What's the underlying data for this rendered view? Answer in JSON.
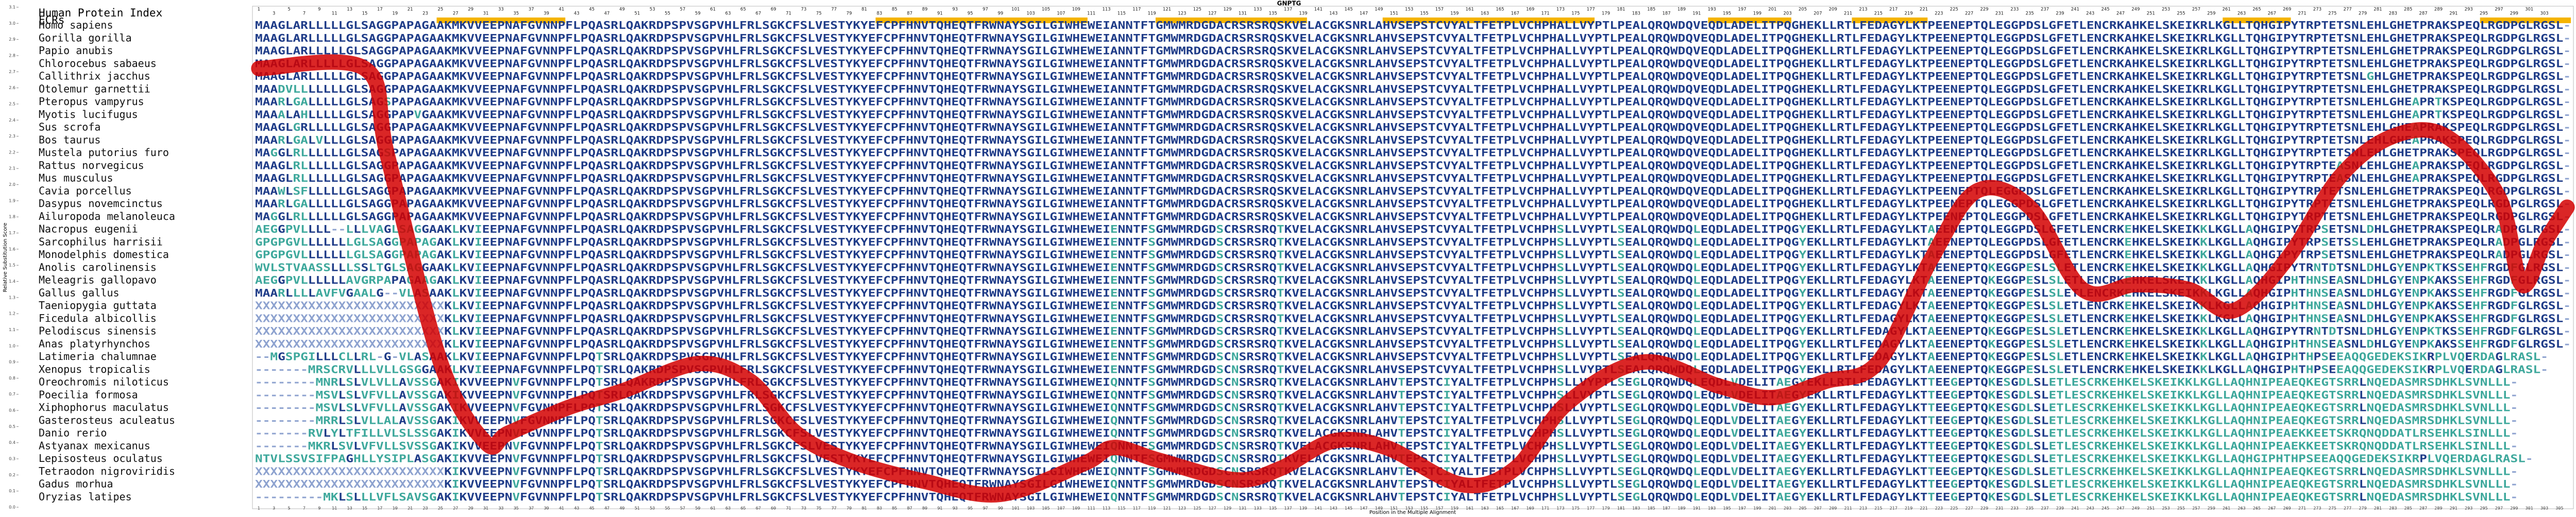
{
  "chart_data": {
    "type": "line",
    "title": "GNPTG",
    "y_label": "Relative Substitution Score",
    "x_label": "Position in the Multiple Alignment",
    "human_index_label": "Human Protein Index",
    "ecr_label": "ECRs",
    "color": "#d40000",
    "xlim": [
      0.5,
      306.5
    ],
    "ylim": [
      0,
      3.1
    ],
    "yticks": [
      {
        "value": 0,
        "label": "0.0"
      },
      0.1,
      0.2,
      0.3,
      0.4,
      0.5,
      0.6,
      0.7,
      0.8,
      0.9,
      {
        "value": 1,
        "label": "1.0"
      },
      1.1,
      1.2,
      1.3,
      1.4,
      1.5,
      1.6,
      1.7,
      1.8,
      1.9,
      {
        "value": 2,
        "label": "2.0"
      },
      2.1,
      2.2,
      2.3,
      2.4,
      2.5,
      2.6,
      2.7,
      2.8,
      2.9,
      {
        "value": 3,
        "label": "3.0"
      },
      3.1
    ],
    "xticks": [
      1,
      3,
      5,
      7,
      9,
      11,
      13,
      15,
      17,
      19,
      21,
      23,
      25,
      27,
      29,
      31,
      33,
      35,
      37,
      39,
      41,
      43,
      45,
      47,
      49,
      51,
      53,
      55,
      57,
      59,
      61,
      63,
      65,
      67,
      69,
      71,
      73,
      75,
      77,
      79,
      81,
      83,
      85,
      87,
      89,
      91,
      93,
      95,
      97,
      99,
      101,
      103,
      105,
      107,
      109,
      111,
      113,
      115,
      117,
      119,
      121,
      123,
      125,
      127,
      129,
      131,
      133,
      135,
      137,
      139,
      141,
      143,
      145,
      147,
      149,
      151,
      153,
      155,
      157,
      159,
      161,
      163,
      165,
      167,
      169,
      171,
      173,
      175,
      177,
      179,
      181,
      183,
      185,
      187,
      189,
      191,
      193,
      195,
      197,
      199,
      201,
      203,
      205,
      207,
      209,
      211,
      213,
      215,
      217,
      219,
      221,
      223,
      225,
      227,
      229,
      231,
      233,
      235,
      237,
      239,
      241,
      243,
      245,
      247,
      249,
      251,
      253,
      255,
      257,
      259,
      261,
      263,
      265,
      267,
      269,
      271,
      273,
      275,
      277,
      279,
      281,
      283,
      285,
      287,
      289,
      291,
      293,
      295,
      297,
      299,
      301,
      303,
      305
    ],
    "human_index": [
      1,
      3,
      5,
      7,
      9,
      11,
      13,
      15,
      17,
      19,
      21,
      23,
      25,
      27,
      29,
      31,
      33,
      35,
      37,
      39,
      41,
      43,
      45,
      47,
      49,
      51,
      53,
      55,
      57,
      59,
      61,
      63,
      65,
      67,
      69,
      71,
      73,
      75,
      77,
      79,
      81,
      83,
      85,
      87,
      89,
      91,
      93,
      95,
      97,
      99,
      101,
      103,
      105,
      107,
      109,
      111,
      113,
      115,
      117,
      119,
      121,
      123,
      125,
      127,
      129,
      131,
      133,
      135,
      137,
      139,
      141,
      143,
      145,
      147,
      149,
      151,
      153,
      155,
      157,
      159,
      161,
      163,
      165,
      167,
      169,
      171,
      173,
      175,
      177,
      179,
      181,
      183,
      185,
      187,
      189,
      191,
      193,
      195,
      197,
      199,
      201,
      203,
      205,
      207,
      209,
      211,
      213,
      215,
      217,
      219,
      221,
      223,
      225,
      227,
      229,
      231,
      233,
      235,
      237,
      239,
      241,
      243,
      245,
      247,
      249,
      251,
      253,
      255,
      257,
      259,
      261,
      263,
      265,
      267,
      269,
      271,
      273,
      275,
      277,
      279,
      281,
      283,
      285,
      287,
      289,
      291,
      293,
      295,
      297,
      299,
      301,
      303
    ],
    "ecrs": [
      [
        25,
        41
      ],
      [
        83,
        110
      ],
      [
        120,
        139
      ],
      [
        150,
        177
      ],
      [
        193,
        203
      ],
      [
        212,
        221
      ],
      [
        261,
        269
      ],
      [
        295,
        306
      ]
    ],
    "x": [
      1,
      15,
      18,
      25,
      31,
      34,
      42,
      49,
      59,
      66,
      72,
      79,
      89,
      99,
      110,
      114,
      120,
      130,
      136,
      143,
      150,
      160,
      167,
      174,
      184,
      194,
      201,
      208,
      215,
      222,
      228,
      235,
      242,
      249,
      256,
      262,
      269,
      276,
      283,
      290,
      297,
      300,
      303,
      306
    ],
    "values": [
      2.72,
      2.72,
      2.18,
      0.9,
      0.4,
      0.46,
      0.62,
      0.72,
      0.89,
      0.78,
      0.46,
      0.29,
      0.16,
      0.08,
      0.27,
      0.37,
      0.29,
      0.17,
      0.24,
      0.41,
      0.37,
      0.14,
      0.24,
      0.65,
      0.9,
      0.75,
      0.68,
      0.78,
      0.9,
      1.54,
      1.96,
      1.86,
      1.35,
      1.38,
      1.35,
      1.22,
      1.54,
      2.05,
      2.3,
      2.3,
      1.92,
      1.38,
      1.64,
      1.86
    ],
    "species": [
      "Homo sapiens",
      "Gorilla gorilla",
      "Papio anubis",
      "Chlorocebus sabaeus",
      "Callithrix jacchus",
      "Otolemur garnettii",
      "Pteropus vampyrus",
      "Myotis lucifugus",
      "Sus scrofa",
      "Bos taurus",
      "Mustela putorius furo",
      "Rattus norvegicus",
      "Mus musculus",
      "Cavia porcellus",
      "Dasypus novemcinctus",
      "Ailuropoda melanoleuca",
      "Nacropus eugenii",
      "Sarcophilus harrisii",
      "Monodelphis domestica",
      "Anolis carolinensis",
      "Meleagris gallopavo",
      "Gallus gallus",
      "Taeniopygia guttata",
      "Ficedula albicollis",
      "Pelodiscus sinensis",
      "Anas platyrhynchos",
      "Latimeria chalumnae",
      "Xenopus tropicalis",
      "Oreochromis niloticus",
      "Poecilia formosa",
      "Xiphophorus maculatus",
      "Gasterosteus aculeatus",
      "Danio rerio",
      "Astyanax mexicanus",
      "Lepisosteus oculatus",
      "Tetraodon nigroviridis",
      "Gadus morhua",
      "Oryzias latipes"
    ],
    "sequences": [
      "MAAGLARLLLLLGLSAGGPAPAGAAKMKVVEEPNAFGVNNPFLPQASRLQAKRDPSPVSGPVHLFRLSGKCFSLVESTYKYEFCPFHNVTQHEQTFRWNAYSGILGIWHEWEIANNTFTGMWMRDGDACRSRSRQSKVELACGKSNRLAHVSEPSTCVYALTFETPLVCHPHALLVYPTLPEALQRQWDQVEQDLADELITPQGHEKLLRTLFEDAGYLKTPEENEPTQLEGGPDSLGFETLENCRKAHKELSKEIKRLKGLLTQHGIPYTRPTETSNLEHLGHETPRAKSPEQLRGDPGLRGSL-",
      "MAAGLARLLLLLGLSAGGPAPAGAAKMKVVEEPNAFGVNNPFLPQASRLQAKRDPSPVSGPVHLFRLSGKCFSLVESTYKYEFCPFHNVTQHEQTFRWNAYSGILGIWHEWEIANNTFTGMWMRDGDACRSRSRQSKVELACGKSNRLAHVSEPSTCVYALTFETPLVCHPHALLVYPTLPEALQRQWDQVEQDLADELITPQGHEKLLRTLFEDAGYLKTPEENEPTQLEGGPDSLGFETLENCRKAHKELSKEIKRLKGLLTQHGIPYTRPTETSNLEHLGHETPRAKSPEQLRGDPGLRGSL-",
      "MAAGLARLLLLLGLSAGGPAPAGAAKMKVVEEPNAFGVNNPFLPQASRLQAKRDPSPVSGPVHLFRLSGKCFSLVESTYKYEFCPFHNVTQHEQTFRWNAYSGILGIWHEWEIANNTFTGMWMRDGDACRSRSRQSKVELACGKSNRLAHVSEPSTCVYALTFETPLVCHPHALLVYPTLPEALQRQWDQVEQDLADELITPQGHEKLLRTLFEDAGYLKTPEENEPTQLEGGPDSLGFETLENCRKAHKELSKEIKRLKGLLTQHGIPYTRPTETSNLEHLGHETPRAKSPEQLRGDPGLRGSL-",
      "MAAGLARLLLLLGLSAGGPAPAGAAKMKVVEEPNAFGVNNPFLPQASRLQAKRDPSPVSGPVHLFRLSGKCFSLVESTYKYEFCPFHNVTQHEQTFRWNAYSGILGIWHEWEIANNTFTGMWMRDGDACRSRSRQSKVELACGKSNRLAHVSEPSTCVYALTFETPLVCHPHALLVYPTLPEALQRQWDQVEQDLADELITPQGHEKLLRTLFEDAGYLKTPEENEPTQLEGGPDSLGFETLENCRKAHKELSKEIKRLKGLLTQHGIPYTRPTETSNLEHLGHETPRAKSPEQLRGDPGLRGSL-",
      "MAAGLARLLLLLGLSAGGPAPAGAAKMKVVEEPNAFGVNNPFLPQASRLQAKRDPSPVSGPVHLFRLSGKCFSLVESTYKYEFCPFHNVTQHEQTFRWNAYSGILGIWHEWEIANNTFTGMWMRDGDACRSRSRQSKVELACGKSNRLAHVSEPSTCVYALTFETPLVCHPHALLVYPTLPEALQRQWDQVEQDLADELITPQGHEKLLRTLFEDAGYLKTPEENEPTQLEGGPDSLGFETLENCRKAHKELSKEIKRLKGLLTQHGIPYTRPTETSNLGHLGHETPRAKSPEQLRGDPGLRGSL-",
      "MAADVLLLLLLLGLSAGGPAPAGAAKMKVVEEPNAFGVNNPFLPQASRLQAKRDPSPVSGPVHLFRLSGKCFSLVESTYKYEFCPFHNVTQHEQTFRWNAYSGILGIWHEWEIANNTFTGMWMRDGDACRSRSRQSKVELACGKSNRLAHVSEPSTCVYALTFETPLVCHPHALLVYPTLPEALQRQWDQVEQDLADELITPQGHEKLLRTLFEDAGYLKTPEENEPTQLEGGPDSLGFETLENCRKAHKELSKEIKRLKGLLTQHGIPYTRPTETSNLEHLGHETPRAKSPEQLRGDPGLRGSL-",
      "MAARLGALLLLLGLSAGSPAPAGAAKMKVVEEPNAFGVNNPFLPQASRLQAKRDPSPVSGPVHLFRLSGKCFSLVESTYKYEFCPFHNVTQHEQTFRWNAYSGILGIWHEWEIANNTFTGMWMRDGDACRSRSRQSKVELACGKSNRLAHVSEPSTCVYALTFETPLVCHPHALLVYPTLPEALQRQWDQVEQDLADELITPQGHEKLLRTLFEDAGYLKTPEENEPTQLEGGPDSLGFETLENCRKAHKELSKEIKRLKGLLTQHGIPYTRPTETSNLEHLGHEAPRTKSPEQLRGDPGLRGSL-",
      "MAAALAHLLLLLGLSAGGPAPVGAAKMKVVEEPNAFGVNNPFLPQASRLQAKRDPSPVSGPVHLFRLSGKCFSLVESTYKYEFCPFHNVTQHEQTFRWNAYSGILGIWHEWEIANNTFTGMWMRDGDACRSRSRQSKVELACGKSNRLAHVSEPSTCVYALTFETPLVCHPHALLVYPTLPEALQRQWDQVEQDLADELITPQGHEKLLRTLFEDAGYLKTPEENEPTQLEGGPDSLGFETLENCRKAHKELSKEIKRLKGLLTQHGIPYTRPTETSNLEHLGHEAPRTKSPEQLRGDPGLRGSL-",
      "MAAGLGRLLLLLGLSAGGPAPAGAAKMKVVEEPNAFGVNNPFLPQASRLQAKRDPSPVSGPVHLFRLSGKCFSLVESTYKYEFCPFHNVTQHEQTFRWNAYSGILGIWHEWEIANNTFTGMWMRDGDACRSRSRQSKVELACGKSNRLAHVSEPSTCVYALTFETPLVCHPHALLVYPTLPEALQRQWDQVEQDLADELITPQGHEKLLRTLFEDAGYLKTPEENEPTQLEGGPDSLGFETLENCRKAHKELSKEIKRLKGLLTQHGIPYTRPTETSNLEHLGHEAPRAKSPEQLRGDPGLRGSL-",
      "MAARLGALVLLLGLSAGGPAPAGAAKMKVVEEPNAFGVNNPFLPQASRLQAKRDPSPVSGPVHLFRLSGKCFSLVESTYKYEFCPFHNVTQHEQTFRWNAYSGILGIWHEWEIANNTFTGMWMRDGDACRSRSRQSKVELACGKSNRLAHVSEPSTCVYALTFETPLVCHPHALLVYPTLPEALQRQWDQVEQDLADELITPQGHEKLLRTLFEDAGYLKTPEENEPTQLEGGPDSLGFETLENCRKAHKELSKEIKRLKGLLTQHGIPYTRPTETSNLEHLGHEAPRAKSPEQLRGDPGLRGSL-",
      "MAGGLRLLLLLLGLSAGSPAPAGAAKMKVVEEPNAFGVNNPFLPQASRLQAKRDPSPVSGPVHLFRLSGKCFSLVESTYKYEFCPFHNVTQHEQTFRWNAYSGILGIWHEWEIANNTFTGMWMRDGDACRSRSRQSKVELACGKSNRLAHVSEPSTCVYALTFETPLVCHPHALLVYPTLPEALQRQWDQVEQDLADELITPQGHEKLLRTLFEDAGYLKTPEENEPTQLEGGPDSLGFETLENCRKAHKELSKEIKRLKGLLTQHGIPYTRPTETSNLEHLGHETPRAKSPEQLRGDPGLRGSL-",
      "MAAGLRLLLLLLGLSAGGPAPAGAAKMKVVEEPNAFGVNNPFLPQASRLQAKRDPSPVSGPVHLFRLSGKCFSLVESTYKYEFCPFHNVTQHEQTFRWNAYSGILGIWHEWEIANNTFTGMWMRDGDACRSRSRQSKVELACGKSNRLAHVSEPSTCVYALTFETPLVCHPHALLVYPTLPEALQRQWDQVEQDLADELITPQGHEKLLRTLFEDAGYLKTPEENEPTQLEGGPDSLGFETLENCRKAHKELSKEIKRLKGLLTQHGIPYTRPTEASNLEHLGHEAPRAKSPEQLRGDPGLRGSL-",
      "MAAGLRLLLLLLGLSAGGPAPAGAAKMKVVEEPNAFGVNNPFLPQASRLQAKRDPSPVSGPVHLFRLSGKCFSLVESTYKYEFCPFHNVTQHEQTFRWNAYSGILGIWHEWEIANNTFTGMWMRDGDACRSRSRQSKVELACGKSNRLAHVSEPSTCVYALTFETPLVCHPHALLVYPTLPEALQRQWDQVEQDLADELITPQGHEKLLRTLFEDAGYLKTPEENEPTQLEGGPDSLGFETLENCRKAHKELSKEIKRLKGLLTQHGIPYTRPTEASNLEHLGHEAPRAKSPEQLRGDPGLRGSL-",
      "MAAWLSFLLLLLGLSAGGPAPAGAAKMKVVEEPNAFGVNNPFLPQASRLQAKRDPSPVSGPVHLFRLSGKCFSLVESTYKYEFCPFHNVTQHEQTFRWNAYSGILGIWHEWEIANNTFTGMWMRDGDACRSRSRQSKVELACGKSNRLAHVSEPSTCVYALTFETPLVCHPHALLVYPTLPEALQRQWDQVEQDLADELITPQGHEKLLRTLFEDAGYLKTPEENEPTQLEGGPDSLGFETLENCRKAHKELSKEIKRLKGLLTQHGIPYTRPTETSNLEHLGHETPRAKSPEQLRGDPGLRGSL-",
      "MAARLGALLLLLGLSAGGPAPAGAAKMKVVEEPNAFGVNNPFLPQASRLQAKRDPSPVSGPVHLFRLSGKCFSLVESTYKYEFCPFHNVTQHEQTFRWNAYSGILGIWHEWEIANNTFTGMWMRDGDACRSRSRQSKVELACGKSNRLAHVSEPSTCVYALTFETPLVCHPHALLVYPTLPEALQRQWDQVEQDLADELITPQGHEKLLRTLFEDAGYLKTPEENEPTQLEGGPDSLGFETLENCRKAHKELSKEIKRLKGLLTQHGIPYTRPTETSNLEHLGHETPRAKSPEQLRGDPGLRGSL-",
      "MAGGLRLLLLLLGLSAGGPAPAGAAKMKVVEEPNAFGVNNPFLPQASRLQAKRDPSPVSGPVHLFRLSGKCFSLVESTYKYEFCPFHNVTQHEQTFRWNAYSGILGIWHEWEIANNTFTGMWMRDGDACRSRSRQSKVELACGKSNRLAHVSEPSTCVYALTFETPLVCHPHALLVYPTLPEALQRQWDQVEQDLADELITPQGHEKLLRTLFEDAGYLKTPEENEPTQLEGGPDSLGFETLENCRKAHKELSKEIKRLKGLLTQHGIPYTRPTETSNLEHLGHETPRAKSPEQLRGDPGLRGSL-",
      "AEGGPVLLLL--LLLVAGLSAGGAAKLKVIEEPNAFGVNNPFLPQASRLQAKRDPSPVSGPVHLFRLSGKCFSLVESTYKYEFCPFHNVTQHEQTFRWNAYSGILGIWHEWEIENNTFSGMWMRDGDSCRSRSRQTKVELACGKSNRLAHVSEPSTCVYALTFETPLVCHPHSLLVYPTLSEALQRQWDQLEQDLADELITPQGYEKLLRTLFEDAGYLKTAEENEPTQLEGGPDSLGFETLENCRKEHKELSKEIKKLKGLLAQHGIPYTRPSETSNLDHLGHETPRAKSPEQLRADPGLRGSL-",
      "GPGPGVLLLLLLLGLSAGGPAPAGAKLKVIEEPNAFGVNNPFLPQASRLQAKRDPSPVSGPVHLFRLSGKCFSLVESTYKYEFCPFHNVTQHEQTFRWNAYSGILGIWHEWEIENNTFSGMWMRDGDSCRSRSRQTKVELACGKSNRLAHVSEPSTCVYALTFETPLVCHPHSLLVYPTLSEALQRQWDQLEQDLADELITPQGYEKLLRTLFEDAGYLKTAEENEPTQLEGGPDSLGFETLENCRKEHKELSKEIKKLKGLLAQHGIPYTRPSETSSLEHLGHETPRAKSPEQLRADPGLRGSL-",
      "GPGPGVLLLLLLLGLSAGGPAPAGAKLKVIEEPNAFGVNNPFLPQASRLQAKRDPSPVSGPVHLFRLSGKCFSLVESTYKYEFCPFHNVTQHEQTFRWNAYSGILGIWHEWEIENNTFSGMWMRDGDSCRSRSRQTKVELACGKSNRLAHVSEPSTCVYALTFETPLVCHPHSLLVYPTLSEALQRQWDQLEQDLADELITPQGYEKLLRTLFEDAGYLKTAEENEPTQLEGGPDSLGFETLENCRKEHKELSKEIKKLKGLLAQHGIPYTRPSETSNLEHLGHETPRAKSPEQLRADPGLRGSL-",
      "WVLSTVAASSLLLSSLTGLSAGGAAKLKVIEEPNAFGVNNPFLPQASRLQAKRDPSPVSGPVHLFRLSGKCFSLVESTYKYEFCPFHNVTQHEQTFRWNAYSGILGIWHEWEIENNTFSGMWMRDGDSCRSRSRQTKVELACGKSNRLAHVSEPSTCVYALTFETPLVCHPHSLLVYPTLSEALQRQWDQLEQDLADELITPQGYEKLLRTLFEDAGYLKTAEENEPTQKEGGPESLSLETLENCRKEHKELSKEIKKLKGLLAQHGIPYTRNTDTSNLDHLGYENPKTKSSEHFRGDFGLRGSL-",
      "AEGGPVLLLLLLAVGRPAPAGAAGAKLKVIEEPNAFGVNNPFLPQASRLQAKRDPSPVSGPVHLFRLSGKCFSLVESTYKYEFCPFHNVTQHEQTFRWNAYSGILGIWHEWEIENNTFSGMWMRDGDSCRSRSRQTKVELACGKSNRLAHVSEPSTCVYALTFETPLVCHPHSLLVYPTLSEALQRQWDQLEQDLADELITPQGYEKLLRTLFEDAGYLKTAEENEPTQKEGGPESLSLETLENCRKEHKELSKEIKKLKGLLAQHGIPHTHNSEASNLDHLGYENPKAKSSEHFRGDFGLRGSL-",
      "MAARLLLLAVFVGAALG--VLASAAKLKVIEEPNAFGVNNPFLPQASRLQAKRDPSPVSGPVHLFRLSGKCFSLVESTYKYEFCPFHNVTQHEQTFRWNAYSGILGIWHEWEIENNTFSGMWMRDGDSCRSRSRQTKVELACGKSNRLAHVSEPSTCVYALTFETPLVCHPHSLLVYPTLSEALQRQWDQLEQDLADELITPQGYEKLLRTLFEDAGYLKTAEENEPTQKEGGPESLSLETLENCRKEHKELSKEIKKLKGLLAQHGIPHTHNSEASNLDHLGYENPKAKSSEHFRGDFGLRGSL-",
      "XXXXXXXXXXXXXXXXXXXXXXXXXKLKVIEEPNAFGVNNPFLPQASRLQAKRDPSPVSGPVHLFRLSGKCFSLVESTYKYEFCPFHNVTQHEQTFRWNAYSGILGIWHEWEIENNTFSGMWMRDGDSCRSRSRQTKVELACGKSNRLAHVSEPSTCVYALTFETPLVCHPHSLLVYPTLSEALQRQWDQLEQDLADELITPQGYEKLLRTLFEDAGYLKTAEENEPTQKEGGPESLSLETLENCRKEHKELSKEIKKLKGLLAQHGIPHTHNSEASNLDHLGYENPKAKSSEHFRGDFGLRGSL-",
      "XXXXXXXXXXXXXXXXXXXXXXXXXKLKVIEEPNAFGVNNPFLPQASRLQAKRDPSPVSGPVHLFRLSGKCFSLVESTYKYEFCPFHNVTQHEQTFRWNAYSGILGIWHEWEIENNTFSGMWMRDGDSCRSRSRQTKVELACGKSNRLAHVSEPSTCVYALTFETPLVCHPHSLLVYPTLSEALQRQWDQLEQDLADELITPQGYEKLLRTLFEDAGYLKTAEENEPTQKEGGPESLSLETLENCRKEHKELSKEIKKLKGLLAQHGIPHTHNSEASNLDHLGYENPKAKSSEHFRGDFGLRGSL-",
      "XXXXXXXXXXXXXXXXXXXXXXXXXKLKVIEEPNAFGVNNPFLPQASRLQAKRDPSPVSGPVHLFRLSGKCFSLVESTYKYEFCPFHNVTQHEQTFRWNAYSGILGIWHEWEIENNTFSGMWMRDGDSCRSRSRQTKVELACGKSNRLAHVSEPSTCVYALTFETPLVCHPHSLLVYPTLSEALQRQWDQLEQDLADELITPQGYEKLLRTLFEDAGYLKTAEENEPTQKEGGPESLSLETLENCRKEHKELSKEIKKLKGLLAQHGIPYTRNTDTSNLDHLGYENPKTKSSEHFRGDFGLRGSL-",
      "XXXXXXXXXXXXXXXXXXXXXXXXXKLKVIEEPNAFGVNNPFLPQASRLQAKRDPSPVSGPVHLFRLSGKCFSLVESTYKYEFCPFHNVTQHEQTFRWNAYSGILGIWHEWEIENNTFSGMWMRDGDSCRSRSRQTKVELACGKSNRLAHVSEPSTCVYALTFETPLVCHPHSLLVYPTLSEALQRQWDQLEQDLADELITPQGYEKLLRTLFEDAGYLKTAEENEPTQKEGGPESLSLETLENCRKEHKELSKEIKKLKGLLAQHGIPHTHNSEASNLDHLGYENPKAKSSEHFRGDFGLRGSL-",
      "--MGSPGILLLCLLRL-G-VLASAAKLKVIEEPNAFGVNNPFLPQTSRLQAKRDPSPVSGPVHLFRLSGKCFSLVESTYKYEFCPFHNVTQHEQTFRWNAYSGILGIWHEWEIENNTFSGMWMRDGDSCNSRSRQTKVELACGKSNRLAHVSEPSTCVYALTFETPLVCHPHSLLVYPTLSEALQRQWDQLEQDLADELITPQGYEKLLRTLFEDAGYLKTAEENEPTQKEGGPESLSLETLENCRKEHKELSKEIKKLKGLLAQHGIPHTHPSEEAQQGEDEKSIKRPLVQERDAGLRASL-",
      "-------MRSCRVLLLVLLGSGGAAKLKVIEEPNAFGVNNPFLPQTSRLQAKRDPSPVSGPVHLFRLSGKCFSLVESTYKYEFCPFHNVTQHEQTFRWNAYSGILGIWHEWEIENNTFSGMWMRDGDSCNSRSRQTKVELACGKSNRLAHVSEPSTCVYALTFETPLVCHPHSLLVYPTLSEALQRQWDQLEQDLADELITPQGYEKLLRTLFEDAGYLKTAEENEPTQKEGGPESLSLETLENCRKEHKELSKEIKKLKGLLAQHGIPHTHPSEEAQQGEDEKSIKRPLVQERDAGLRASL-",
      "--------MNRLSLVLVLLAVSSGAKIKVVEEPNVFGVNNPFLPQTSRLQAKRDPSPVSGPVHLFRLSGKCFSLVESTYKYEFCPFHNVTQHEQTFRWNAYSGILGIWHEWEIQNNTFSGMWMRDGDSCNSRSRQTKVELACGKSNRLAHVTEPSTCIYALTFETPLVCHPHSLLVYPTLSEGLQRQWDQLEQDLVDELITAEGYEKLLRTLFEDAGYLKTTEEGEPTQKESGDLSLETLESCRKEHKELSKEIKKLKGLLAQHNIPEAEQKEGTSRRLNQEDASMRSDHKLSVNLLL-",
      "--------MSVLSLVFVLLAVSSGAKIKVVEEPNVFGVNNPFLPQTSRLQAKRDPSPVSGPVHLFRLSGKCFSLVESTYKYEFCPFHNVTQHEQTFRWNAYSGILGIWHEWEIQNNTFSGMWMRDGDSCNSRSRQTKVELACGKSNRLAHVTEPSTCIYALTFETPLVCHPHSLLVYPTLSEGLQRQWDQLEQDLVDELITAEGYEKLLRTLFEDAGYLKTTEEGEPTQKESGDLSLETLESCRKEHKELSKEIKKLKGLLAQHNIPEAEQKEGTSRRLNQEDASMRSDHKLSVNLLL-",
      "--------MSVLSLVFVLLAVSSGAKIKVVEEPNVFGVNNPFLPQTSRLQAKRDPSPVSGPVHLFRLSGKCFSLVESTYKYEFCPFHNVTQHEQTFRWNAYSGILGIWHEWEIQNNTFSGMWMRDGDSCNSRSRQTKVELACGKSNRLAHVTEPSTCIYALTFETPLVCHPHSLLVYPTLSEGLQRQWDQLEQDLVDELITAEGYEKLLRTLFEDAGYLKTTEEGEPTQKESGDLSLETLESCRKEHKELSKEIKKLKGLLAQHNIPEAEQKEGTSRRLNQEDASMRSDHKLSVNLLL-",
      "--------MRRLSLVLLALAVSSGAKIKVVEEPNVFGVNNPFLPQTSRLQAKRDPSPVSGPVHLFRLSGKCFSLVESTYKYEFCPFHNVTQHEQTFRWNAYSGILGIWHEWEIQNNTFSGMWMRDGDSCNSRSRQTKVELACGKSNRLAHVTEPSTCIYALTFETPLVCHPHSLLVYPTLSEGLQRQWDQLEQDLVDELITAEGYEKLLRTLFEDAGYLKTTEEGEPTQKESGDLSLETLESCRKEHKELSKEIKKLKGLLAQHNIPEAEQKEGTSRRLNQEDASMRSDHKLSVNLLL-",
      "-------RVLYLTFILLVLSLSSGAKIKVVEEPNVFGVNNPFLPQTSRLQAKRDPSPVSGPVHLFRLSGKCFSLVESTYKYEFCPFHNVTQHEQTFRWNAYSGILGIWHEWEIQNNTFSGMWMRDGDSCNSRSRQTKVELACGKSNRLAHVTEPSTCIYALTFETPLVCHPHSLLVYPTLSEGLQRQWDQLEQDLVDELITAEGYEKLLRTLFEDAGYLKTTEEGEPTQKESGDLSLETLESCRKEHKELSKEIKKLKGLLAQHNIPEAEKKEETSKRQNQDDATLRSEHKLSINLLL-",
      "-------MKRLSVLVFVLLSVSSGAKIKVVEEPNVFGVNNPFLPQTSRLQAKRDPSPVSGPVHLFRLSGKCFSLVESTYKYEFCPFHNVTQHEQTFRWNAYSGILGIWHEWEIQNNTFSGMWMRDGDSCNSRSRQTKVELACGKSNRLAHVTEPSTCIYALTFETPLVCHPHSLLVYPTLSEGLQRQWDQLEQDLVDELITAEGYEKLLRTLFEDAGYLKTTEEGEPTQKESGDLSLETLESCRKEHKELSKEIKKLKGLLAQHNIPEAEKKEETSKRQNQDDATLRSEHKLSINLLL-",
      "NTVLSSVSIFPAGHLLYSIPLASGAKIKVVEEPNVFGVNNPFLPQTSRLQAKRDPSPVSGPVHLFRLSGKCFSLVESTYKYEFCPFHNVTQHEQTFRWNAYSGILGIWHEWEIQNNTFSGMWMRDGDSCNSRSRQTKVELACGKSNRLAHVTEPSTCIYALTFETPLVCHPHSLLVYPTLSEGLQRQWDQLEQDLVDELITAEGYEKLLRTLFEDAGYLKTTEEGEPTQKESGDLSLETLESCRKEHKELSKEIKKLKGLLAQHGIPHTHPSEEAQQGEDEKSIKRPLVQERDAGLRASL-",
      "XXXXXXXXXXXXXXXXXXXXXXXXXKIKVVEEPNVFGVNNPFLPQTSRLQAKRDPSPVSGPVHLFRLSGKCFSLVESTYKYEFCPFHNVTQHEQTFRWNAYSGILGIWHEWEIQNNTFSGMWMRDGDSCNSRSRQTKVELACGKSNRLAHVTEPSTCIYALTFETPLVCHPHSLLVYPTLSEGLQRQWDQLEQDLVDELITAEGYEKLLRTLFEDAGYLKTTEEGEPTQKESGDLSLETLESCRKEHKELSKEIKKLKGLLAQHNIPEAEQKEGTSRRLNQEDASMRSDHKLSVNLLL-",
      "XXXXXXXXXXXXXXXXXXXXXXXXXKIKVVEEPNVFGVNNPFLPQTSRLQAKRDPSPVSGPVHLFRLSGKCFSLVESTYKYEFCPFHNVTQHEQTFRWNAYSGILGIWHEWEIQNNTFSGMWMRDGDSCNSRSRQTKVELACGKSNRLAHVTEPSTCIYALTFETPLVCHPHSLLVYPTLSEGLQRQWDQLEQDLVDELITAEGYEKLLRTLFEDAGYLKTTEEGEPTQKESGDLSLETLESCRKEHKELSKEIKKLKGLLAQHNIPEAEQKEGTSRRLNQEDASMRSDHKLSVNLLL-",
      "---------MKLSLLLVFLSAVSGAKIKVVEEPNVFGVNNPFLPQTSRLQAKRDPSPVSGPVHLFRLSGKCFSLVESTYKYEFCPFHNVTQHEQTFRWNAYSGILGIWHEWEIQNNTFSGMWMRDGDSCNSRSRQTKVELACGKSNRLAHVTEPSTCIYALTFETPLVCHPHSLLVYPTLSEGLQRQWDQLEQDLVDELITAEGYEKLLRTLFEDAGYLKTTEEGEPTQKESGDLSLETLESCRKEHKELSKEIKKLKGLLAQHNIPEAEQKEGTSRRLNQEDASMRSDHKLSVNLLL-"
    ]
  }
}
